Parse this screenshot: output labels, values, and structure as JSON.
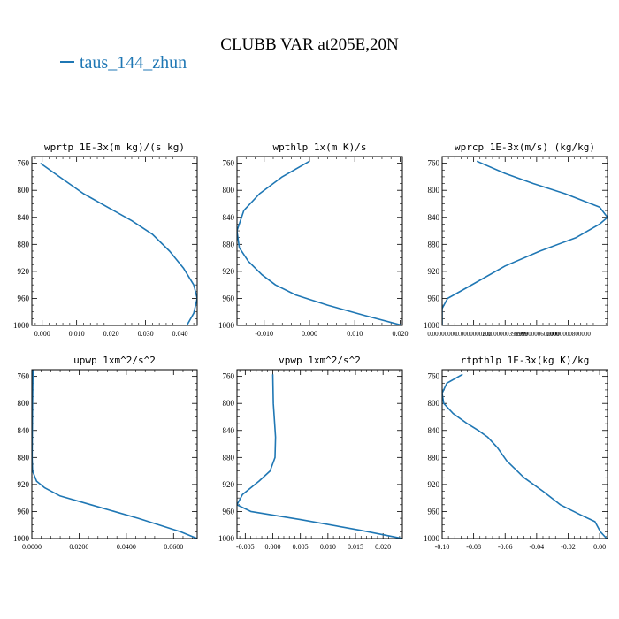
{
  "figure": {
    "title": "CLUBB VAR at205E,20N",
    "legend": {
      "label": "taus_144_zhun",
      "color": "#1f77b4",
      "placement": "top-left"
    }
  },
  "chart_data": [
    {
      "type": "line",
      "title": "wprtp  1E-3x(m kg)/(s kg)",
      "xlim": [
        -0.003,
        0.045
      ],
      "ylim": [
        1000,
        750
      ],
      "xticks": [
        0.0,
        0.01,
        0.02,
        0.03,
        0.04
      ],
      "xtick_labels": [
        "0.000",
        "0.010",
        "0.020",
        "0.030",
        "0.040"
      ],
      "yticks": [
        760,
        800,
        840,
        880,
        920,
        960,
        1000
      ],
      "series": [
        {
          "color": "#1f77b4",
          "x": [
            -0.0005,
            0.005,
            0.012,
            0.019,
            0.026,
            0.032,
            0.037,
            0.041,
            0.044,
            0.045,
            0.044,
            0.042
          ],
          "y": [
            760,
            780,
            805,
            825,
            845,
            865,
            890,
            915,
            940,
            960,
            982,
            1000
          ]
        }
      ]
    },
    {
      "type": "line",
      "title": "wpthlp  1x(m K)/s",
      "xlim": [
        -0.016,
        0.0205
      ],
      "ylim": [
        1000,
        750
      ],
      "xticks": [
        -0.01,
        0.0,
        0.01,
        0.02
      ],
      "xtick_labels": [
        "-0.010",
        "0.000",
        "0.010",
        "0.020"
      ],
      "yticks": [
        760,
        800,
        840,
        880,
        920,
        960,
        1000
      ],
      "series": [
        {
          "color": "#1f77b4",
          "x": [
            0.0,
            -0.006,
            -0.011,
            -0.0145,
            -0.016,
            -0.0155,
            -0.0135,
            -0.0105,
            -0.0075,
            -0.003,
            0.004,
            0.012,
            0.0205
          ],
          "y": [
            757,
            780,
            805,
            830,
            860,
            885,
            905,
            925,
            940,
            955,
            970,
            985,
            1000
          ]
        }
      ]
    },
    {
      "type": "line",
      "title": "wprcp  1E-3x(m/s) (kg/kg)",
      "xlim": [
        0.0,
        1.05e-07
      ],
      "ylim": [
        1000,
        750
      ],
      "xticks": [
        0.0,
        2e-08,
        4e-08,
        6e-08,
        8e-08
      ],
      "xtick_labels": [
        "0.00000000",
        "0.0000000200",
        "0.0000000399999",
        "0.0000000600000",
        "0.0000000800000"
      ],
      "yticks": [
        760,
        800,
        840,
        880,
        920,
        960,
        1000
      ],
      "series": [
        {
          "color": "#1f77b4",
          "x": [
            2.2e-08,
            4e-08,
            5.8e-08,
            7.8e-08,
            1e-07,
            1.05e-07,
            1e-07,
            8.5e-08,
            6.2e-08,
            4e-08,
            1.5e-08,
            3.5e-09,
            0.0,
            0.0
          ],
          "y": [
            757,
            775,
            790,
            805,
            825,
            840,
            850,
            870,
            890,
            912,
            945,
            960,
            975,
            1000
          ]
        }
      ]
    },
    {
      "type": "line",
      "title": "upwp  1xm^2/s^2",
      "xlim": [
        0.0,
        0.07
      ],
      "ylim": [
        1000,
        750
      ],
      "xticks": [
        0.0,
        0.02,
        0.04,
        0.06
      ],
      "xtick_labels": [
        "0.0000",
        "0.0200",
        "0.0400",
        "0.0600"
      ],
      "yticks": [
        760,
        800,
        840,
        880,
        920,
        960,
        1000
      ],
      "series": [
        {
          "color": "#1f77b4",
          "x": [
            0.0005,
            0.0003,
            0.0002,
            0.0001,
            0.0003,
            0.002,
            0.0055,
            0.012,
            0.025,
            0.045,
            0.063,
            0.07
          ],
          "y": [
            750,
            800,
            850,
            880,
            900,
            915,
            925,
            937,
            950,
            970,
            990,
            1000
          ]
        }
      ]
    },
    {
      "type": "line",
      "title": "vpwp  1xm^2/s^2",
      "xlim": [
        -0.0065,
        0.0235
      ],
      "ylim": [
        1000,
        750
      ],
      "xticks": [
        -0.005,
        0.0,
        0.005,
        0.01,
        0.015,
        0.02
      ],
      "xtick_labels": [
        "-0.005",
        "0.000",
        "0.005",
        "0.010",
        "0.015",
        "0.020"
      ],
      "yticks": [
        760,
        800,
        840,
        880,
        920,
        960,
        1000
      ],
      "series": [
        {
          "color": "#1f77b4",
          "x": [
            0.0,
            0.0001,
            0.0005,
            0.0004,
            -0.0005,
            -0.0025,
            -0.0055,
            -0.0065,
            -0.004,
            0.005,
            0.016,
            0.0235
          ],
          "y": [
            757,
            800,
            850,
            880,
            900,
            915,
            935,
            950,
            960,
            972,
            988,
            1000
          ]
        }
      ]
    },
    {
      "type": "line",
      "title": "rtpthlp  1E-3x(kg K)/kg",
      "xlim": [
        -0.1,
        0.005
      ],
      "ylim": [
        1000,
        750
      ],
      "xticks": [
        -0.1,
        -0.08,
        -0.06,
        -0.04,
        -0.02,
        0.0
      ],
      "xtick_labels": [
        "-0.10",
        "-0.08",
        "-0.06",
        "-0.04",
        "-0.02",
        "0.00"
      ],
      "yticks": [
        760,
        800,
        840,
        880,
        920,
        960,
        1000
      ],
      "series": [
        {
          "color": "#1f77b4",
          "x": [
            -0.087,
            -0.097,
            -0.1,
            -0.099,
            -0.093,
            -0.084,
            -0.077,
            -0.071,
            -0.065,
            -0.059,
            -0.048,
            -0.036,
            -0.025,
            -0.012,
            -0.003,
            0.0005,
            0.0045
          ],
          "y": [
            757,
            770,
            785,
            800,
            815,
            830,
            840,
            850,
            865,
            885,
            910,
            930,
            950,
            965,
            975,
            990,
            1000
          ]
        }
      ]
    }
  ]
}
